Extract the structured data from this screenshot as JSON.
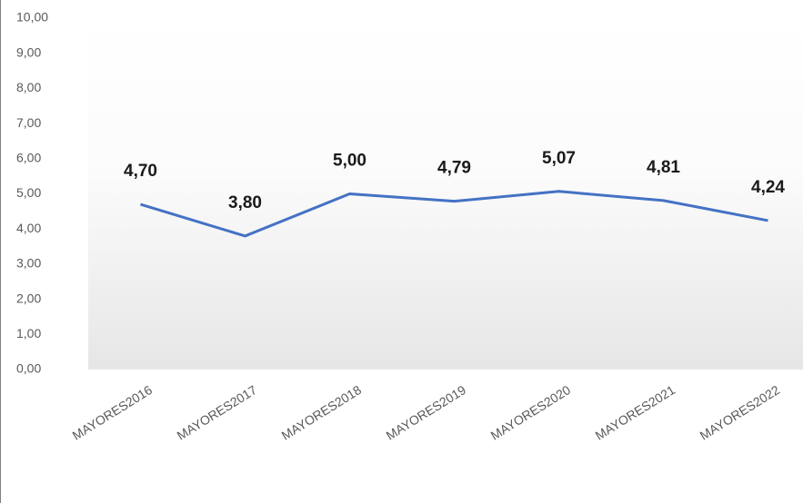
{
  "chart_data": {
    "type": "line",
    "categories": [
      "MAYORES2016",
      "MAYORES2017",
      "MAYORES2018",
      "MAYORES2019",
      "MAYORES2020",
      "MAYORES2021",
      "MAYORES2022"
    ],
    "values": [
      4.7,
      3.8,
      5.0,
      4.79,
      5.07,
      4.81,
      4.24
    ],
    "value_labels": [
      "4,70",
      "3,80",
      "5,00",
      "4,79",
      "5,07",
      "4,81",
      "4,24"
    ],
    "color": "#4472c4",
    "ylim": [
      0,
      10
    ],
    "yticks": [
      {
        "value": 0,
        "label": "0,00"
      },
      {
        "value": 1,
        "label": "1,00"
      },
      {
        "value": 2,
        "label": "2,00"
      },
      {
        "value": 3,
        "label": "3,00"
      },
      {
        "value": 4,
        "label": "4,00"
      },
      {
        "value": 5,
        "label": "5,00"
      },
      {
        "value": 6,
        "label": "6,00"
      },
      {
        "value": 7,
        "label": "7,00"
      },
      {
        "value": 8,
        "label": "8,00"
      },
      {
        "value": 9,
        "label": "9,00"
      },
      {
        "value": 10,
        "label": "10,00"
      }
    ]
  }
}
